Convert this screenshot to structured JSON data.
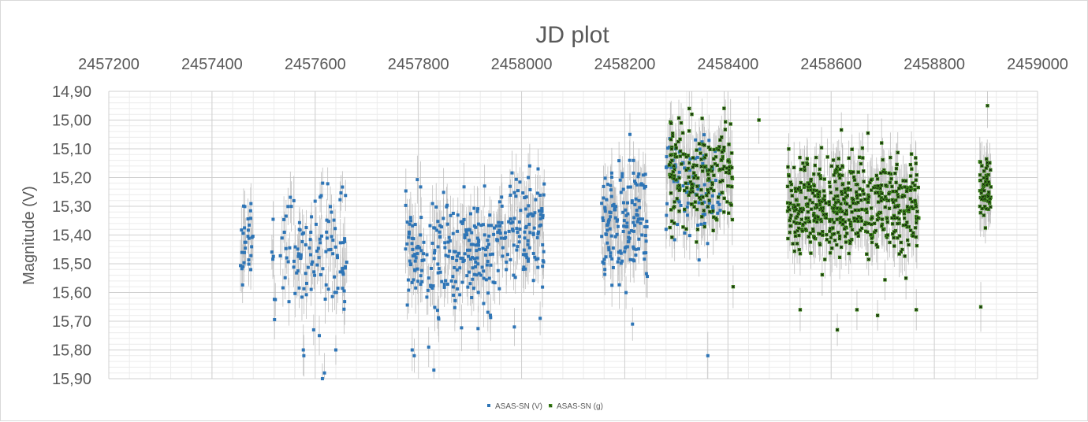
{
  "chart_data": {
    "type": "scatter",
    "title": "JD plot",
    "xlabel": "",
    "ylabel": "Magnitude (V)",
    "xlim": [
      2457200,
      2459000
    ],
    "ylim": [
      14.9,
      15.9
    ],
    "y_reversed": true,
    "x_axis_position": "top",
    "x_ticks": [
      2457200,
      2457400,
      2457600,
      2457800,
      2458000,
      2458200,
      2458400,
      2458600,
      2458800,
      2459000
    ],
    "x_tick_labels": [
      "2457200",
      "2457400",
      "2457600",
      "2457800",
      "2458000",
      "2458200",
      "2458400",
      "2458600",
      "2458800",
      "2459000"
    ],
    "y_ticks": [
      14.9,
      15.0,
      15.1,
      15.2,
      15.3,
      15.4,
      15.5,
      15.6,
      15.7,
      15.8,
      15.9
    ],
    "y_tick_labels": [
      "14,90",
      "15,00",
      "15,10",
      "15,20",
      "15,30",
      "15,40",
      "15,50",
      "15,60",
      "15,70",
      "15,80",
      "15,90"
    ],
    "grid": true,
    "legend_position": "bottom",
    "series": [
      {
        "name": "ASAS-SN (V)",
        "color": "#2e75b6",
        "marker": "square",
        "error_bar_color": "#bfbfbf",
        "clusters": [
          {
            "x_start": 2457455,
            "x_end": 2457480,
            "count": 30,
            "y_center": 15.42,
            "y_spread": 0.11
          },
          {
            "x_start": 2457505,
            "x_end": 2457560,
            "count": 25,
            "y_center": 15.45,
            "y_spread": 0.14
          },
          {
            "x_start": 2457560,
            "x_end": 2457665,
            "count": 95,
            "y_center": 15.47,
            "y_spread": 0.16
          },
          {
            "x_start": 2457775,
            "x_end": 2457945,
            "count": 220,
            "y_center": 15.47,
            "y_spread": 0.15
          },
          {
            "x_start": 2457945,
            "x_end": 2458045,
            "count": 120,
            "y_center": 15.37,
            "y_spread": 0.14
          },
          {
            "x_start": 2458155,
            "x_end": 2458245,
            "count": 150,
            "y_center": 15.36,
            "y_spread": 0.14
          },
          {
            "x_start": 2458280,
            "x_end": 2458385,
            "count": 90,
            "y_center": 15.24,
            "y_spread": 0.12
          }
        ],
        "points": [
          {
            "x": 2457577,
            "y": 15.8
          },
          {
            "x": 2457578,
            "y": 15.82
          },
          {
            "x": 2457614,
            "y": 15.9
          },
          {
            "x": 2457618,
            "y": 15.88
          },
          {
            "x": 2457640,
            "y": 15.8
          },
          {
            "x": 2457788,
            "y": 15.8
          },
          {
            "x": 2457792,
            "y": 15.82
          },
          {
            "x": 2457820,
            "y": 15.79
          },
          {
            "x": 2457830,
            "y": 15.87
          },
          {
            "x": 2457608,
            "y": 15.75
          },
          {
            "x": 2457597,
            "y": 15.73
          },
          {
            "x": 2458210,
            "y": 15.05
          },
          {
            "x": 2458215,
            "y": 15.71
          },
          {
            "x": 2458361,
            "y": 15.82
          },
          {
            "x": 2458032,
            "y": 15.17
          },
          {
            "x": 2458013,
            "y": 15.2
          },
          {
            "x": 2457986,
            "y": 15.72
          },
          {
            "x": 2458036,
            "y": 15.69
          }
        ]
      },
      {
        "name": "ASAS-SN (g)",
        "color": "#3f8f1a",
        "marker": "x",
        "error_bar_color": "#bfbfbf",
        "clusters": [
          {
            "x_start": 2458285,
            "x_end": 2458410,
            "count": 200,
            "y_center": 15.2,
            "y_spread": 0.14
          },
          {
            "x_start": 2458515,
            "x_end": 2458770,
            "count": 560,
            "y_center": 15.3,
            "y_spread": 0.12
          },
          {
            "x_start": 2458888,
            "x_end": 2458910,
            "count": 60,
            "y_center": 15.25,
            "y_spread": 0.08
          }
        ],
        "points": [
          {
            "x": 2458325,
            "y": 14.96
          },
          {
            "x": 2458330,
            "y": 14.98
          },
          {
            "x": 2458903,
            "y": 14.95
          },
          {
            "x": 2458890,
            "y": 15.65
          },
          {
            "x": 2458540,
            "y": 15.66
          },
          {
            "x": 2458650,
            "y": 15.66
          },
          {
            "x": 2458612,
            "y": 15.73
          },
          {
            "x": 2458460,
            "y": 15.0
          },
          {
            "x": 2458410,
            "y": 15.58
          },
          {
            "x": 2458690,
            "y": 15.68
          },
          {
            "x": 2458765,
            "y": 15.66
          }
        ]
      }
    ]
  }
}
